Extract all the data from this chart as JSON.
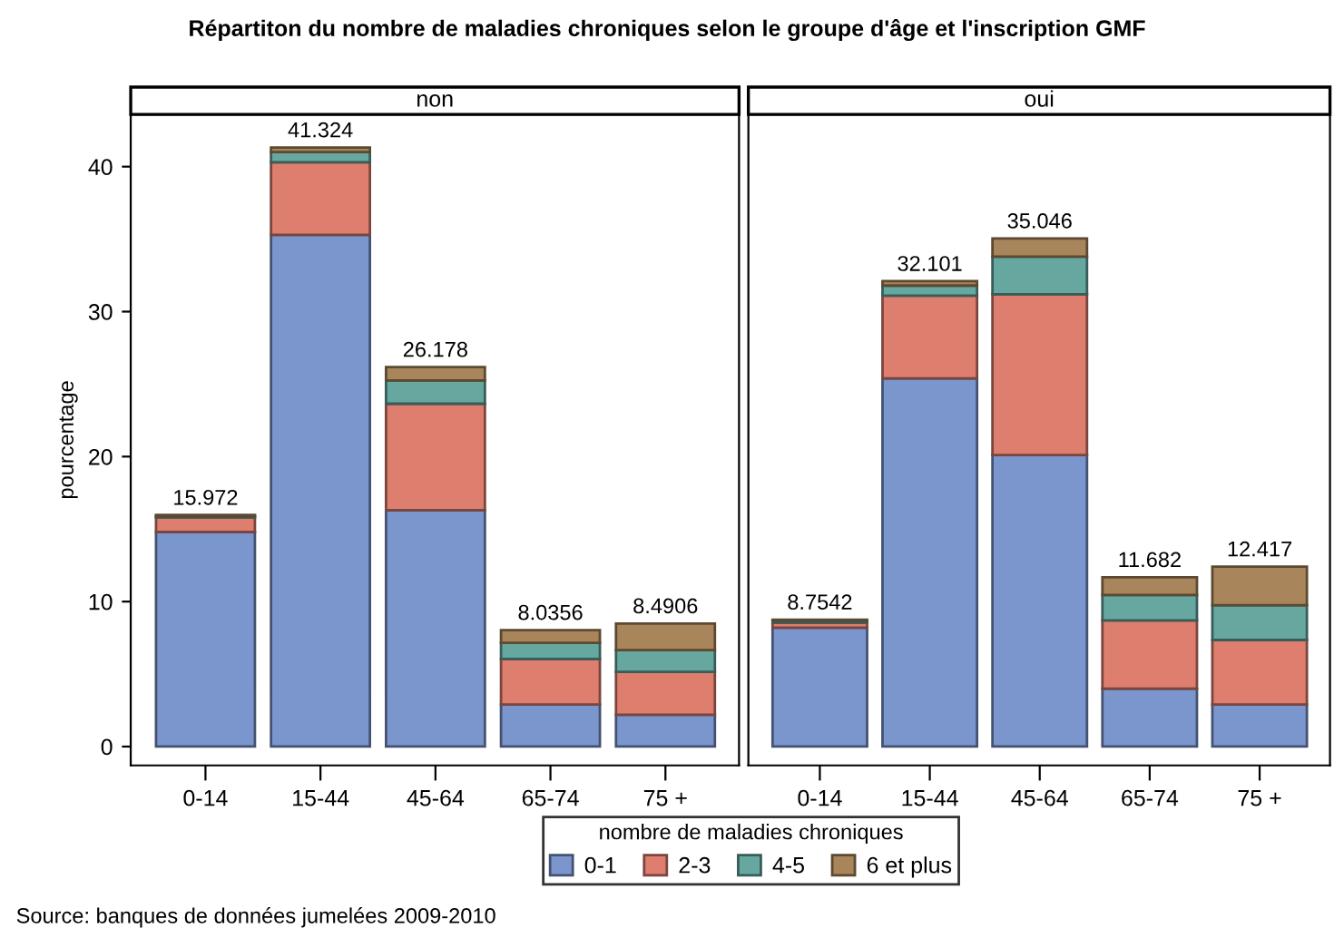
{
  "chart_data": [
    {
      "type": "bar",
      "stacked": true,
      "title": "Répartiton du nombre de maladies chroniques selon le groupe d'âge et l'inscription GMF",
      "subtitle": "non",
      "ylabel": "pourcentage",
      "legend_title": "nombre de maladies chroniques",
      "legend": "bottom",
      "annotations": [
        "Source: banques de données jumelées 2009-2010"
      ],
      "categories": [
        "0-14",
        "15-44",
        "45-64",
        "65-74",
        "75 +"
      ],
      "series": [
        {
          "name": "0-1",
          "color": "#7b96cd",
          "values": [
            14.8,
            35.3,
            16.3,
            2.9,
            2.2
          ]
        },
        {
          "name": "2-3",
          "color": "#de7e6e",
          "values": [
            1.0,
            5.0,
            7.35,
            3.15,
            2.95
          ]
        },
        {
          "name": "4-5",
          "color": "#66a8a0",
          "values": [
            0.1,
            0.7,
            1.6,
            1.1,
            1.5
          ]
        },
        {
          "name": "6 et plus",
          "color": "#a8855a",
          "values": [
            0.072,
            0.324,
            0.928,
            0.8856,
            1.8406
          ]
        }
      ],
      "totals": [
        "15.972",
        "41.324",
        "26.178",
        "8.0356",
        "8.4906"
      ],
      "ylim": [
        -1.3,
        43.6
      ],
      "yticks": [
        0,
        10,
        20,
        30,
        40
      ],
      "grid": false
    },
    {
      "type": "bar",
      "stacked": true,
      "subtitle": "oui",
      "tick_labels": "x",
      "categories": [
        "0-14",
        "15-44",
        "45-64",
        "65-74",
        "75 +"
      ],
      "series": [
        {
          "color": "#7b96cd",
          "values": [
            8.2,
            25.4,
            20.1,
            4.0,
            2.9
          ]
        },
        {
          "color": "#de7e6e",
          "values": [
            0.35,
            5.7,
            11.1,
            4.7,
            4.45
          ]
        },
        {
          "color": "#66a8a0",
          "values": [
            0.15,
            0.7,
            2.6,
            1.75,
            2.4
          ]
        },
        {
          "color": "#a8855a",
          "values": [
            0.0542,
            0.301,
            1.246,
            1.232,
            2.667
          ]
        }
      ],
      "totals": [
        "8.7542",
        "32.101",
        "35.046",
        "11.682",
        "12.417"
      ],
      "ylim": [
        -1.3,
        43.6
      ],
      "yticks": [
        0,
        10,
        20,
        30,
        40
      ],
      "grid": false
    }
  ]
}
